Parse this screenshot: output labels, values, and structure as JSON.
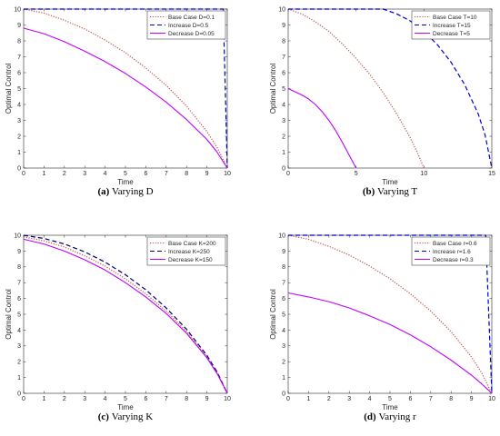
{
  "chart_data": [
    {
      "type": "line",
      "caption_tag": "(a)",
      "caption_text": "Varying D",
      "xlabel": "Time",
      "ylabel": "Optimal Control",
      "xlim": [
        0,
        10
      ],
      "ylim": [
        0,
        10
      ],
      "xticks": [
        "0",
        "1",
        "2",
        "3",
        "4",
        "5",
        "6",
        "7",
        "8",
        "9",
        "10"
      ],
      "yticks": [
        "0",
        "1",
        "2",
        "3",
        "4",
        "5",
        "6",
        "7",
        "8",
        "9",
        "10"
      ],
      "legend_position": "top-right",
      "series": [
        {
          "name": "Base Case D=0.1",
          "style": "dotted",
          "color": "#c0504d",
          "x": [
            0,
            1,
            2,
            3,
            4,
            5,
            6,
            7,
            8,
            9,
            9.5,
            10
          ],
          "y": [
            10,
            9.75,
            9.3,
            8.75,
            8.05,
            7.25,
            6.3,
            5.2,
            3.9,
            2.3,
            1.3,
            0
          ]
        },
        {
          "name": "Increase D=0.5",
          "style": "dashed",
          "color": "#0000cc",
          "x": [
            0,
            9.8,
            9.9,
            10
          ],
          "y": [
            10,
            10,
            5,
            0
          ]
        },
        {
          "name": "Decrease D=0.05",
          "style": "solid",
          "color": "#bf00ff",
          "x": [
            0,
            1,
            2,
            3,
            4,
            5,
            6,
            7,
            8,
            9,
            9.5,
            10
          ],
          "y": [
            8.8,
            8.45,
            7.95,
            7.35,
            6.7,
            5.95,
            5.1,
            4.15,
            3.05,
            1.8,
            1.0,
            0
          ]
        }
      ]
    },
    {
      "type": "line",
      "caption_tag": "(b)",
      "caption_text": "Varying T",
      "xlabel": "Time",
      "ylabel": "Optimal Control",
      "xlim": [
        0,
        15
      ],
      "ylim": [
        0,
        10
      ],
      "xticks": [
        "0",
        "5",
        "10",
        "15"
      ],
      "yticks": [
        "0",
        "1",
        "2",
        "3",
        "4",
        "5",
        "6",
        "7",
        "8",
        "9",
        "10"
      ],
      "legend_position": "top-right",
      "series": [
        {
          "name": "Base Case T=10",
          "style": "dotted",
          "color": "#c0504d",
          "x": [
            0,
            1,
            2,
            3,
            4,
            5,
            6,
            7,
            8,
            9,
            9.5,
            10
          ],
          "y": [
            10,
            9.7,
            9.2,
            8.6,
            7.8,
            6.9,
            5.9,
            4.75,
            3.4,
            1.9,
            1.0,
            0
          ]
        },
        {
          "name": "Increase T=15",
          "style": "dashed",
          "color": "#0000cc",
          "x": [
            0,
            7,
            8,
            9,
            10,
            11,
            12,
            13,
            14,
            14.5,
            15
          ],
          "y": [
            10,
            10,
            9.7,
            9.25,
            8.6,
            7.75,
            6.65,
            5.25,
            3.4,
            2.1,
            0
          ]
        },
        {
          "name": "Decrease T=5",
          "style": "solid",
          "color": "#bf00ff",
          "x": [
            0,
            0.5,
            1,
            1.5,
            2,
            2.5,
            3,
            3.5,
            4,
            4.5,
            5
          ],
          "y": [
            5.0,
            4.8,
            4.6,
            4.35,
            4.0,
            3.55,
            3.0,
            2.35,
            1.6,
            0.8,
            0
          ]
        }
      ]
    },
    {
      "type": "line",
      "caption_tag": "(c)",
      "caption_text": "Varying K",
      "xlabel": "Time",
      "ylabel": "Optimal Control",
      "xlim": [
        0,
        10
      ],
      "ylim": [
        0,
        10
      ],
      "xticks": [
        "0",
        "1",
        "2",
        "3",
        "4",
        "5",
        "6",
        "7",
        "8",
        "9",
        "10"
      ],
      "yticks": [
        "0",
        "1",
        "2",
        "3",
        "4",
        "5",
        "6",
        "7",
        "8",
        "9",
        "10"
      ],
      "legend_position": "top-right",
      "series": [
        {
          "name": "Base Case K=200",
          "style": "dotted",
          "color": "#c0504d",
          "x": [
            0,
            1,
            2,
            3,
            4,
            5,
            6,
            7,
            8,
            9,
            9.5,
            10
          ],
          "y": [
            9.9,
            9.65,
            9.25,
            8.7,
            8.05,
            7.25,
            6.3,
            5.2,
            3.9,
            2.3,
            1.3,
            0
          ]
        },
        {
          "name": "Increase K=250",
          "style": "dashed",
          "color": "#000066",
          "x": [
            0,
            1,
            2,
            3,
            4,
            5,
            6,
            7,
            8,
            9,
            9.5,
            10
          ],
          "y": [
            10.0,
            9.8,
            9.45,
            8.95,
            8.3,
            7.5,
            6.55,
            5.4,
            4.05,
            2.4,
            1.35,
            0
          ]
        },
        {
          "name": "Decrease K=150",
          "style": "solid",
          "color": "#bf00ff",
          "x": [
            0,
            1,
            2,
            3,
            4,
            5,
            6,
            7,
            8,
            9,
            9.5,
            10
          ],
          "y": [
            9.75,
            9.45,
            9.0,
            8.45,
            7.8,
            7.0,
            6.1,
            5.05,
            3.8,
            2.25,
            1.25,
            0
          ]
        }
      ]
    },
    {
      "type": "line",
      "caption_tag": "(d)",
      "caption_text": "Varying r",
      "xlabel": "Time",
      "ylabel": "Optimal Control",
      "xlim": [
        0,
        10
      ],
      "ylim": [
        0,
        10
      ],
      "xticks": [
        "0",
        "1",
        "2",
        "3",
        "4",
        "5",
        "6",
        "7",
        "8",
        "9",
        "10"
      ],
      "yticks": [
        "0",
        "1",
        "2",
        "3",
        "4",
        "5",
        "6",
        "7",
        "8",
        "9",
        "10"
      ],
      "legend_position": "top-right",
      "series": [
        {
          "name": "Base Case r=0.6",
          "style": "dotted",
          "color": "#c0504d",
          "x": [
            0,
            1,
            2,
            3,
            4,
            5,
            6,
            7,
            8,
            9,
            9.5,
            10
          ],
          "y": [
            10,
            9.75,
            9.3,
            8.75,
            8.05,
            7.25,
            6.3,
            5.2,
            3.9,
            2.3,
            1.3,
            0
          ]
        },
        {
          "name": "Increase r=1.6",
          "style": "dashed",
          "color": "#0000cc",
          "x": [
            0,
            9.7,
            9.85,
            10
          ],
          "y": [
            10,
            10,
            5,
            0
          ]
        },
        {
          "name": "Decrease r=0.3",
          "style": "solid",
          "color": "#bf00ff",
          "x": [
            0,
            1,
            2,
            3,
            4,
            5,
            6,
            7,
            8,
            9,
            9.5,
            10
          ],
          "y": [
            6.35,
            6.1,
            5.8,
            5.4,
            4.9,
            4.35,
            3.7,
            2.95,
            2.1,
            1.15,
            0.6,
            0
          ]
        }
      ]
    }
  ]
}
